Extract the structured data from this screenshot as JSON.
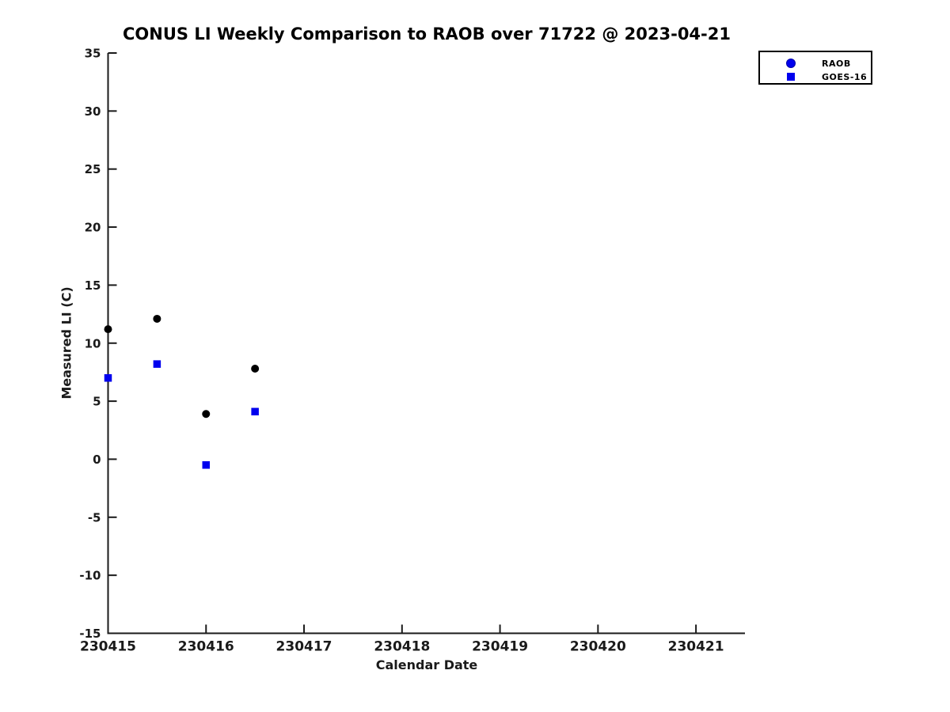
{
  "figure": {
    "title": "CONUS LI Weekly Comparison to RAOB over 71722 @ 2023-04-21"
  },
  "chart_data": {
    "type": "scatter",
    "title": "CONUS LI Weekly Comparison to RAOB over 71722 @ 2023-04-21",
    "xlabel": "Calendar Date",
    "ylabel": "Measured LI (C)",
    "xlim": [
      230415,
      230421.5
    ],
    "ylim": [
      -15,
      35
    ],
    "x_ticks": [
      230415,
      230416,
      230417,
      230418,
      230419,
      230420,
      230421
    ],
    "y_ticks": [
      35,
      30,
      25,
      20,
      15,
      10,
      5,
      0,
      -5,
      -10,
      -15
    ],
    "grid": false,
    "legend_position": "top-right",
    "series": [
      {
        "name": "RAOB",
        "marker": "circle",
        "plot_color": "#000000",
        "legend_color": "#0000ee",
        "points": [
          {
            "x": 230415.0,
            "y": 11.2
          },
          {
            "x": 230415.5,
            "y": 12.1
          },
          {
            "x": 230416.0,
            "y": 3.9
          },
          {
            "x": 230416.5,
            "y": 7.8
          }
        ]
      },
      {
        "name": "GOES-16",
        "marker": "square",
        "plot_color": "#0000ee",
        "legend_color": "#0000ee",
        "points": [
          {
            "x": 230415.0,
            "y": 7.0
          },
          {
            "x": 230415.5,
            "y": 8.2
          },
          {
            "x": 230416.0,
            "y": -0.5
          },
          {
            "x": 230416.5,
            "y": 4.1
          }
        ]
      }
    ],
    "style": {
      "axis_color": "#1a1a1a",
      "tick_label_color": "#1a1a1a",
      "marker_black": "#000000",
      "marker_blue": "#0000ee",
      "background": "#ffffff"
    }
  }
}
